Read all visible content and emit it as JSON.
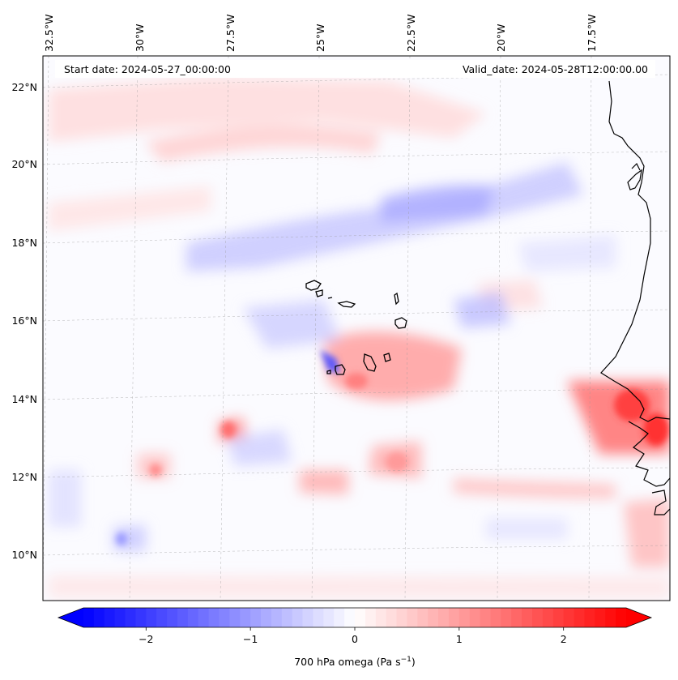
{
  "header": {
    "start_date": "Start date: 2024-05-27_00:00:00",
    "valid_date": "Valid_date: 2024-05-28T12:00:00.00"
  },
  "map": {
    "lon_labels": [
      "32.5°W",
      "30°W",
      "27.5°W",
      "25°W",
      "22.5°W",
      "20°W",
      "17.5°W"
    ],
    "lat_labels": [
      "22°N",
      "20°N",
      "18°N",
      "16°N",
      "14°N",
      "12°N",
      "10°N"
    ],
    "extent": {
      "lon_min": -32.6,
      "lon_max": -15.2,
      "lat_min": 8.9,
      "lat_max": 22.8
    },
    "features": [
      "Cabo Verde islands",
      "West African coastline"
    ]
  },
  "colorbar": {
    "ticks": [
      "−2",
      "−1",
      "0",
      "1",
      "2"
    ],
    "tick_values": [
      -2,
      -1,
      0,
      1,
      2
    ],
    "range": [
      -2.6,
      2.6
    ],
    "label": "700 hPa omega (Pa s",
    "label_exp": "−1",
    "label_close": ")",
    "cmap": "bwr",
    "neg_color": "#0000ff",
    "zero_color": "#ffffff",
    "pos_color": "#ff0000"
  }
}
